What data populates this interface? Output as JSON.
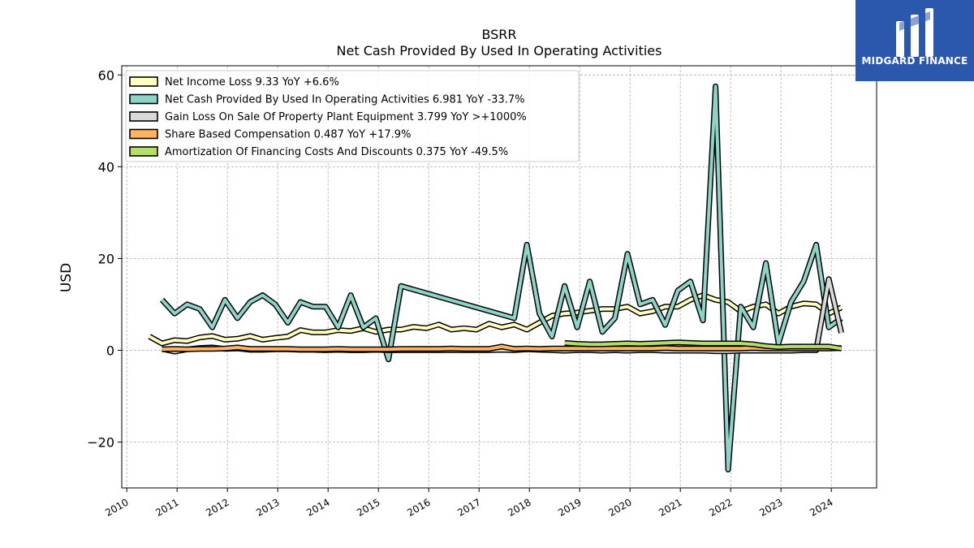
{
  "logo": {
    "text": "MIDGARD FINANCE",
    "background": "#2b58ad"
  },
  "chart_data": {
    "type": "line",
    "title": "BSRR",
    "subtitle": "Net Cash Provided By Used In Operating Activities",
    "ylabel": "USD",
    "xlim": [
      2009.9,
      2024.9
    ],
    "ylim": [
      -30,
      62
    ],
    "yticks": [
      -20,
      0,
      20,
      40,
      60
    ],
    "xticks": [
      "2010",
      "2011",
      "2012",
      "2013",
      "2014",
      "2015",
      "2016",
      "2017",
      "2018",
      "2019",
      "2020",
      "2021",
      "2022",
      "2023",
      "2024"
    ],
    "grid": true,
    "legend_position": "top-left",
    "series": [
      {
        "name": "Net Income Loss",
        "legend": "Net Income Loss  9.33 YoY +6.6%",
        "color": "#ffffbf",
        "x": [
          2010.45,
          2010.7,
          2010.95,
          2011.2,
          2011.45,
          2011.7,
          2011.95,
          2012.2,
          2012.45,
          2012.7,
          2012.95,
          2013.2,
          2013.45,
          2013.7,
          2013.95,
          2014.2,
          2014.45,
          2014.7,
          2014.95,
          2015.2,
          2015.45,
          2015.7,
          2015.95,
          2016.2,
          2016.45,
          2016.7,
          2016.95,
          2017.2,
          2017.45,
          2017.7,
          2017.95,
          2018.2,
          2018.45,
          2018.7,
          2018.95,
          2019.2,
          2019.45,
          2019.7,
          2019.95,
          2020.2,
          2020.45,
          2020.7,
          2020.95,
          2021.2,
          2021.45,
          2021.7,
          2021.95,
          2022.2,
          2022.45,
          2022.7,
          2022.95,
          2023.2,
          2023.45,
          2023.7,
          2023.95,
          2024.2
        ],
        "values": [
          3.0,
          1.5,
          2.2,
          2.0,
          2.8,
          3.1,
          2.3,
          2.5,
          3.1,
          2.3,
          2.7,
          3.0,
          4.4,
          3.9,
          3.9,
          4.4,
          4.2,
          4.8,
          4.0,
          4.5,
          4.5,
          5.1,
          4.8,
          5.6,
          4.5,
          4.8,
          4.5,
          5.8,
          5.0,
          5.6,
          4.5,
          6.0,
          7.5,
          8.0,
          8.2,
          8.6,
          9.0,
          9.0,
          9.5,
          8.0,
          8.5,
          9.5,
          9.5,
          11.0,
          12.0,
          11.0,
          10.5,
          8.5,
          9.5,
          10.0,
          8.0,
          9.5,
          10.2,
          10.0,
          8.0,
          9.33
        ]
      },
      {
        "name": "Net Cash Provided By Used In Operating Activities",
        "legend": "Net Cash Provided By Used In Operating Activities  6.981 YoY -33.7%",
        "color": "#8dd3c7",
        "x": [
          2010.7,
          2010.95,
          2011.2,
          2011.45,
          2011.7,
          2011.95,
          2012.2,
          2012.45,
          2012.7,
          2012.95,
          2013.2,
          2013.45,
          2013.7,
          2013.95,
          2014.2,
          2014.45,
          2014.7,
          2014.95,
          2015.2,
          2015.45,
          2017.7,
          2017.95,
          2018.2,
          2018.45,
          2018.7,
          2018.95,
          2019.2,
          2019.45,
          2019.7,
          2019.95,
          2020.2,
          2020.45,
          2020.7,
          2020.95,
          2021.2,
          2021.45,
          2021.7,
          2021.95,
          2022.2,
          2022.45,
          2022.7,
          2022.95,
          2023.2,
          2023.45,
          2023.7,
          2023.95,
          2024.2
        ],
        "values": [
          11.0,
          8.0,
          10.0,
          9.0,
          5.0,
          11.0,
          7.0,
          10.5,
          12.0,
          10.0,
          6.0,
          10.5,
          9.5,
          9.5,
          5.0,
          12.0,
          5.0,
          7.0,
          -2.0,
          14.0,
          7.0,
          23.0,
          8.0,
          3.0,
          14.0,
          5.0,
          15.0,
          4.0,
          7.0,
          21.0,
          10.0,
          11.0,
          5.5,
          13.0,
          15.0,
          6.5,
          57.5,
          -26.0,
          9.5,
          5.0,
          19.0,
          1.5,
          10.5,
          15.0,
          23.0,
          5.0,
          6.981
        ]
      },
      {
        "name": "Gain Loss On Sale Of Property Plant Equipment",
        "legend": "Gain Loss On Sale Of Property Plant Equipment  3.799 YoY >+1000%",
        "color": "#d9d9d9",
        "x": [
          2010.7,
          2010.95,
          2011.2,
          2011.45,
          2011.7,
          2011.95,
          2012.2,
          2012.45,
          2012.7,
          2012.95,
          2013.2,
          2013.45,
          2013.7,
          2013.95,
          2014.2,
          2014.45,
          2014.7,
          2014.95,
          2015.2,
          2015.45,
          2015.7,
          2015.95,
          2016.2,
          2016.45,
          2016.7,
          2016.95,
          2017.2,
          2017.45,
          2017.7,
          2017.95,
          2018.2,
          2018.45,
          2018.7,
          2018.95,
          2019.2,
          2019.45,
          2019.7,
          2019.95,
          2020.2,
          2020.45,
          2020.7,
          2020.95,
          2021.2,
          2021.45,
          2021.7,
          2021.95,
          2022.2,
          2022.45,
          2022.7,
          2022.95,
          2023.2,
          2023.45,
          2023.7,
          2023.95,
          2024.2
        ],
        "values": [
          0.3,
          -0.3,
          0.2,
          0.5,
          0.6,
          0.3,
          0.4,
          0.1,
          0.1,
          0.2,
          0.2,
          0.1,
          0.1,
          0.0,
          0.1,
          0.0,
          0.0,
          0.1,
          0.0,
          0.0,
          0.0,
          0.0,
          0.0,
          0.0,
          0.0,
          0.0,
          0.0,
          0.1,
          0.0,
          0.2,
          0.1,
          0.0,
          -0.1,
          0.0,
          0.0,
          -0.1,
          0.0,
          -0.1,
          0.0,
          0.0,
          -0.1,
          -0.1,
          -0.1,
          -0.1,
          -0.2,
          -0.2,
          -0.1,
          -0.1,
          -0.1,
          -0.1,
          -0.1,
          0.0,
          0.0,
          15.5,
          3.799
        ]
      },
      {
        "name": "Share Based Compensation",
        "legend": "Share Based Compensation  0.487 YoY +17.9%",
        "color": "#fdb462",
        "x": [
          2010.7,
          2010.95,
          2011.2,
          2011.45,
          2011.7,
          2011.95,
          2012.2,
          2012.45,
          2012.7,
          2012.95,
          2013.2,
          2013.45,
          2013.7,
          2013.95,
          2014.2,
          2014.45,
          2014.7,
          2014.95,
          2015.2,
          2015.45,
          2015.7,
          2015.95,
          2016.2,
          2016.45,
          2016.7,
          2016.95,
          2017.2,
          2017.45,
          2017.7,
          2017.95,
          2018.2,
          2018.45,
          2018.7,
          2018.95,
          2019.2,
          2019.45,
          2019.7,
          2019.95,
          2020.2,
          2020.45,
          2020.7,
          2020.95,
          2021.2,
          2021.45,
          2021.7,
          2021.95,
          2022.2,
          2022.45,
          2022.7,
          2022.95,
          2023.2,
          2023.45,
          2023.7,
          2023.95,
          2024.2
        ],
        "values": [
          0.2,
          0.3,
          0.2,
          0.3,
          0.3,
          0.4,
          0.6,
          0.3,
          0.3,
          0.3,
          0.3,
          0.2,
          0.2,
          0.2,
          0.3,
          0.2,
          0.2,
          0.2,
          0.2,
          0.3,
          0.3,
          0.3,
          0.3,
          0.4,
          0.3,
          0.3,
          0.3,
          0.8,
          0.3,
          0.4,
          0.3,
          0.4,
          0.4,
          0.4,
          0.4,
          0.4,
          0.4,
          0.4,
          0.4,
          0.4,
          0.5,
          0.4,
          0.4,
          0.4,
          0.4,
          0.4,
          0.4,
          0.5,
          0.4,
          0.4,
          0.4,
          0.4,
          0.4,
          0.4,
          0.487
        ]
      },
      {
        "name": "Amortization Of Financing Costs And Discounts",
        "legend": "Amortization Of Financing Costs And Discounts  0.375 YoY -49.5%",
        "color": "#b3de69",
        "x": [
          2018.7,
          2018.95,
          2019.2,
          2019.45,
          2019.7,
          2019.95,
          2020.2,
          2020.45,
          2020.7,
          2020.95,
          2021.2,
          2021.45,
          2021.7,
          2021.95,
          2022.2,
          2022.45,
          2022.7,
          2022.95,
          2023.2,
          2023.45,
          2023.7,
          2023.95,
          2024.2
        ],
        "values": [
          1.6,
          1.4,
          1.3,
          1.3,
          1.4,
          1.5,
          1.4,
          1.5,
          1.6,
          1.7,
          1.6,
          1.5,
          1.5,
          1.5,
          1.5,
          1.3,
          0.9,
          0.7,
          0.8,
          0.8,
          0.8,
          0.8,
          0.375
        ]
      }
    ]
  }
}
